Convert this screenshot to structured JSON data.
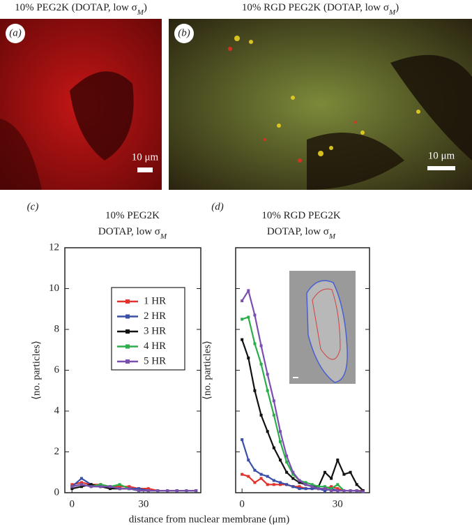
{
  "images": [
    {
      "label": "(a)",
      "title": [
        {
          "text": "10% PEG2K (DOTAP, low σ"
        },
        {
          "text": "M",
          "sub": true
        },
        {
          "text": ")"
        }
      ],
      "scale": "10 μm"
    },
    {
      "label": "(b)",
      "title": [
        {
          "text": "10% RGD PEG2K (DOTAP, low σ"
        },
        {
          "text": "M",
          "sub": true
        },
        {
          "text": ")"
        }
      ],
      "scale": "10 μm"
    }
  ],
  "xlabel": "distance from nuclear membrane (μm)",
  "chart_data": [
    {
      "type": "line",
      "panel": "(c)",
      "title": [
        [
          {
            "text": "10% PEG2K"
          }
        ],
        [
          {
            "text": "DOTAP, low σ"
          },
          {
            "text": "M",
            "sub": true
          }
        ]
      ],
      "ylabel": "⟨no. particles⟩",
      "ytick_labels": true,
      "legend": "inside",
      "x": [
        0,
        4,
        8,
        12,
        16,
        20,
        24,
        28,
        32,
        36,
        40,
        44,
        48,
        52
      ],
      "xlim": [
        -3,
        54
      ],
      "xticks": [
        0,
        30
      ],
      "ylim": [
        0,
        12
      ],
      "yticks": [
        0,
        2,
        4,
        6,
        8,
        10,
        12
      ],
      "series": [
        {
          "name": "1 HR",
          "color": "#e3322b",
          "values": [
            0.4,
            0.5,
            0.4,
            0.4,
            0.3,
            0.3,
            0.3,
            0.2,
            0.2,
            0.1,
            0.1,
            0.1,
            0.1,
            0.1
          ]
        },
        {
          "name": "2 HR",
          "color": "#3a4fa8",
          "values": [
            0.3,
            0.7,
            0.4,
            0.3,
            0.3,
            0.2,
            0.2,
            0.2,
            0.1,
            0.1,
            0.1,
            0.1,
            0.1,
            0.1
          ]
        },
        {
          "name": "3 HR",
          "color": "#111111",
          "values": [
            0.2,
            0.3,
            0.4,
            0.3,
            0.2,
            0.2,
            0.2,
            0.1,
            0.1,
            0.1,
            0.1,
            0.1,
            0.1,
            0.1
          ]
        },
        {
          "name": "4 HR",
          "color": "#2aae4a",
          "values": [
            0.3,
            0.4,
            0.3,
            0.4,
            0.3,
            0.4,
            0.2,
            0.1,
            0.1,
            0.1,
            0.1,
            0.1,
            0.1,
            0.1
          ]
        },
        {
          "name": "5 HR",
          "color": "#7b4fb0",
          "values": [
            0.3,
            0.4,
            0.3,
            0.3,
            0.3,
            0.2,
            0.2,
            0.1,
            0.1,
            0.1,
            0.1,
            0.1,
            0.1,
            0.1
          ]
        }
      ]
    },
    {
      "type": "line",
      "panel": "(d)",
      "title": [
        [
          {
            "text": "10% RGD PEG2K"
          }
        ],
        [
          {
            "text": "DOTAP, low σ"
          },
          {
            "text": "M",
            "sub": true
          }
        ]
      ],
      "ylabel": "⟨no. particles⟩",
      "ytick_labels": false,
      "x": [
        0,
        2,
        4,
        6,
        8,
        10,
        12,
        14,
        16,
        18,
        20,
        22,
        24,
        26,
        28,
        30,
        32,
        34,
        36,
        38
      ],
      "xlim": [
        -2,
        40
      ],
      "xticks": [
        0,
        30
      ],
      "ylim": [
        0,
        12
      ],
      "yticks": [
        0,
        2,
        4,
        6,
        8,
        10,
        12
      ],
      "series": [
        {
          "name": "1 HR",
          "color": "#e3322b",
          "values": [
            0.9,
            0.8,
            0.5,
            0.7,
            0.4,
            0.4,
            0.4,
            0.4,
            0.3,
            0.3,
            0.2,
            0.2,
            0.2,
            0.2,
            0.3,
            0.2,
            0.1,
            0.1,
            0.1,
            0.1
          ]
        },
        {
          "name": "2 HR",
          "color": "#3a4fa8",
          "values": [
            2.6,
            1.6,
            1.1,
            0.9,
            0.8,
            0.6,
            0.5,
            0.4,
            0.3,
            0.2,
            0.2,
            0.2,
            0.2,
            0.1,
            0.2,
            0.1,
            0.1,
            0.1,
            0.1,
            0.05
          ]
        },
        {
          "name": "3 HR",
          "color": "#111111",
          "values": [
            7.5,
            6.6,
            5.0,
            3.8,
            3.0,
            2.2,
            1.6,
            1.0,
            0.7,
            0.5,
            0.4,
            0.3,
            0.3,
            1.0,
            0.7,
            1.6,
            0.9,
            1.0,
            0.4,
            0.1
          ]
        },
        {
          "name": "4 HR",
          "color": "#2aae4a",
          "values": [
            8.5,
            8.6,
            7.3,
            6.3,
            5.0,
            3.8,
            2.5,
            1.5,
            0.9,
            0.6,
            0.5,
            0.4,
            0.3,
            0.3,
            0.2,
            0.4,
            0.1,
            0.1,
            0.1,
            0.05
          ]
        },
        {
          "name": "5 HR",
          "color": "#7b4fb0",
          "values": [
            9.4,
            9.9,
            8.7,
            7.2,
            5.8,
            4.5,
            3.0,
            1.8,
            1.0,
            0.6,
            0.4,
            0.3,
            0.2,
            0.2,
            0.1,
            0.1,
            0.1,
            0.1,
            0.1,
            0.05
          ]
        }
      ]
    }
  ]
}
